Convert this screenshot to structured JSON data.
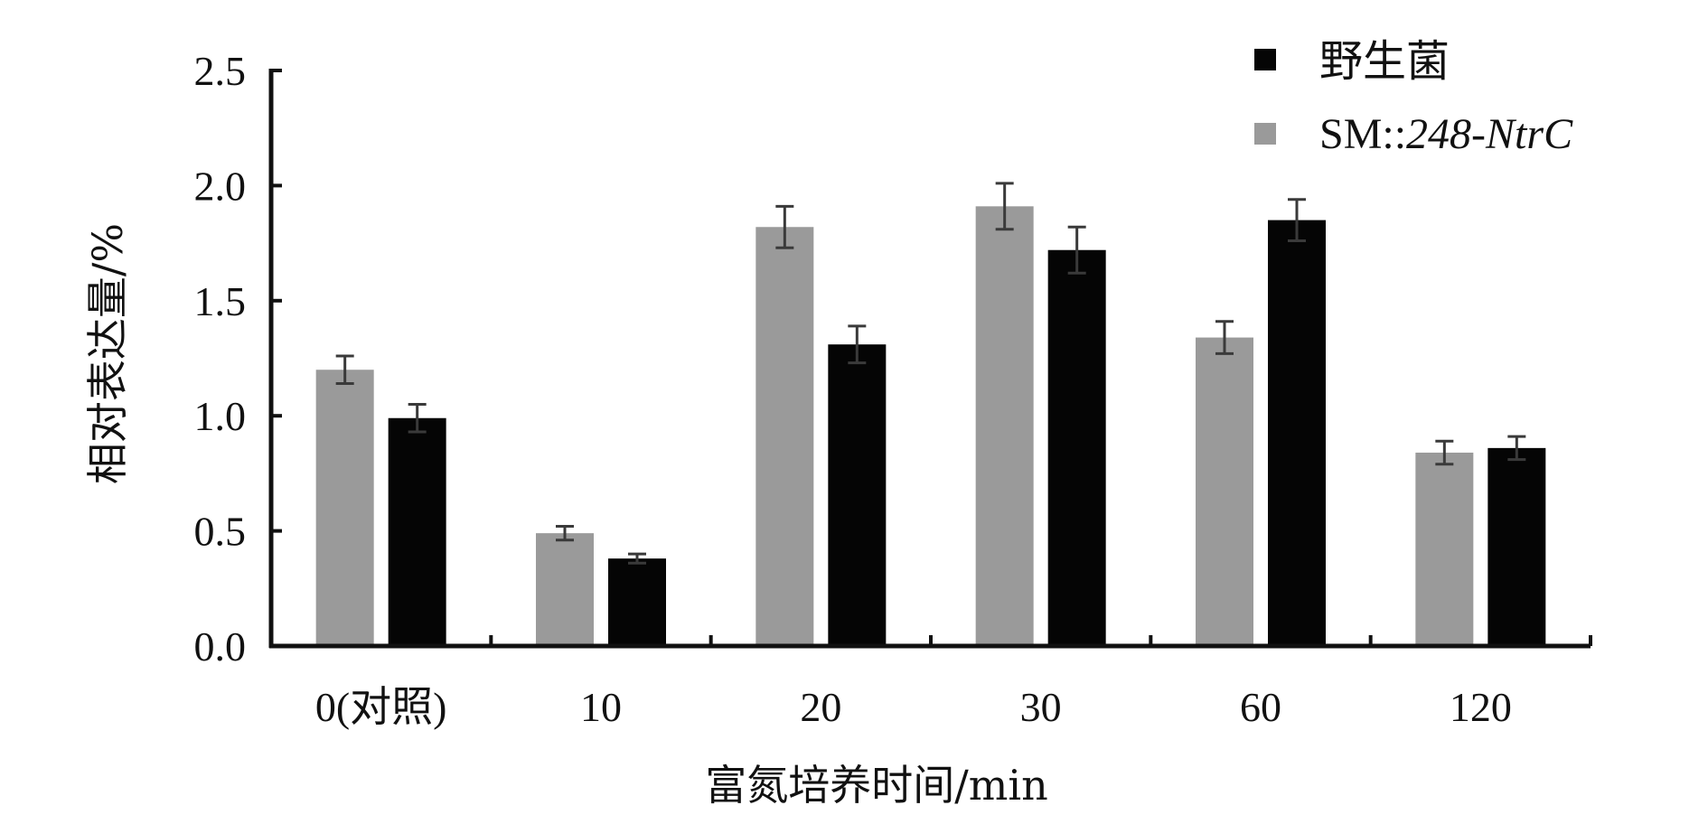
{
  "chart_data": {
    "type": "bar",
    "categories": [
      "0(对照)",
      "10",
      "20",
      "30",
      "60",
      "120"
    ],
    "series": [
      {
        "name": "SM::248-NtrC",
        "name_parts": [
          "SM::",
          "248-NtrC"
        ],
        "color": "#9a9a9a",
        "values": [
          1.2,
          0.49,
          1.82,
          1.91,
          1.34,
          0.84
        ],
        "errors": [
          0.06,
          0.03,
          0.09,
          0.1,
          0.07,
          0.05
        ]
      },
      {
        "name": "野生菌",
        "color": "#050505",
        "values": [
          0.99,
          0.38,
          1.31,
          1.72,
          1.85,
          0.86
        ],
        "errors": [
          0.06,
          0.02,
          0.08,
          0.1,
          0.09,
          0.05
        ]
      }
    ],
    "xlabel": "富氮培养时间/min",
    "ylabel": "相对表达量/%",
    "ylim": [
      0,
      2.5
    ],
    "yticks": [
      "0.0",
      "0.5",
      "1.0",
      "1.5",
      "2.0",
      "2.5"
    ],
    "grid": false,
    "legend_position": "top-right",
    "legend_order": [
      "野生菌",
      "SM::248-NtrC"
    ]
  }
}
